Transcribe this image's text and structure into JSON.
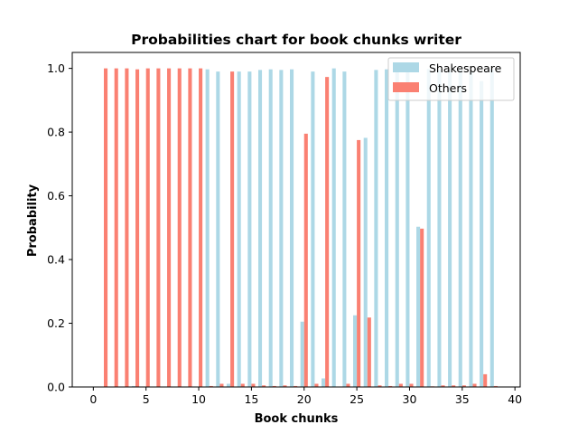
{
  "chart_data": {
    "type": "bar",
    "title": "Probabilities chart for book chunks writer",
    "xlabel": "Book chunks",
    "ylabel": "Probability",
    "xlim": [
      -2,
      40.5
    ],
    "ylim": [
      0,
      1.05
    ],
    "xticks": [
      0,
      5,
      10,
      15,
      20,
      25,
      30,
      35,
      40
    ],
    "yticks": [
      0.0,
      0.2,
      0.4,
      0.6,
      0.8,
      1.0
    ],
    "xtick_labels": [
      "0",
      "5",
      "10",
      "15",
      "20",
      "25",
      "30",
      "35",
      "40"
    ],
    "ytick_labels": [
      "0.0",
      "0.2",
      "0.4",
      "0.6",
      "0.8",
      "1.0"
    ],
    "grid": false,
    "legend_position": "top-right",
    "x": [
      1,
      2,
      3,
      4,
      5,
      6,
      7,
      8,
      9,
      10,
      11,
      12,
      13,
      14,
      15,
      16,
      17,
      18,
      19,
      20,
      21,
      22,
      23,
      24,
      25,
      26,
      27,
      28,
      29,
      30,
      31,
      32,
      33,
      34,
      35,
      36,
      37,
      38
    ],
    "series": [
      {
        "name": "Shakespeare",
        "color": "#add8e6",
        "values": [
          0.0,
          0.0,
          0.0,
          0.003,
          0.0,
          0.0,
          0.0,
          0.0,
          0.0,
          0.0,
          0.997,
          0.99,
          0.01,
          0.99,
          0.99,
          0.995,
          0.997,
          0.995,
          0.997,
          0.205,
          0.99,
          0.027,
          1.0,
          0.99,
          0.225,
          0.782,
          0.995,
          0.997,
          0.99,
          0.99,
          0.503,
          0.998,
          0.995,
          0.995,
          0.995,
          0.99,
          0.96,
          0.997
        ]
      },
      {
        "name": "Others",
        "color": "#fa8072",
        "values": [
          1.0,
          1.0,
          1.0,
          0.997,
          1.0,
          1.0,
          1.0,
          1.0,
          1.0,
          1.0,
          0.003,
          0.01,
          0.99,
          0.01,
          0.01,
          0.005,
          0.003,
          0.005,
          0.003,
          0.795,
          0.01,
          0.973,
          0.0,
          0.01,
          0.775,
          0.218,
          0.005,
          0.003,
          0.01,
          0.01,
          0.497,
          0.002,
          0.005,
          0.005,
          0.005,
          0.01,
          0.04,
          0.003
        ]
      }
    ]
  }
}
